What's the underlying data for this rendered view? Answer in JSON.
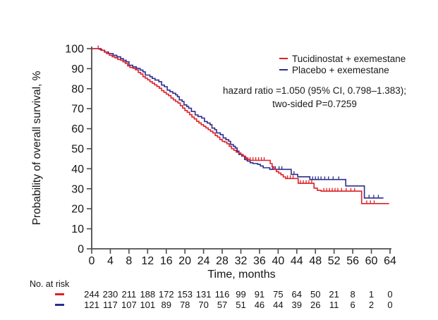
{
  "colors": {
    "tucidinostat": "#dd2127",
    "placebo": "#2b2e8f",
    "axis": "#4d4d4d",
    "text": "#141414"
  },
  "legend": {
    "items": [
      {
        "label": "Tucidinostat + exemestane",
        "color": "#dd2127"
      },
      {
        "label": "Placebo + exemestane",
        "color": "#2b2e8f"
      }
    ]
  },
  "annotation": {
    "line1": "hazard ratio =1.050 (95% CI, 0.798–1.383);",
    "line2": "two-sided P=0.7259"
  },
  "chart_data": {
    "type": "line",
    "subtype": "kaplan-meier-step",
    "title": "",
    "xlabel": "Time, months",
    "ylabel": "Probability of overall survival, %",
    "xlim": [
      0,
      64
    ],
    "ylim": [
      0,
      100
    ],
    "grid": false,
    "legend_position": "top-right-inside",
    "xticks": [
      0,
      4,
      8,
      12,
      16,
      20,
      24,
      28,
      32,
      36,
      40,
      44,
      48,
      52,
      56,
      60,
      64
    ],
    "yticks": [
      0,
      10,
      20,
      30,
      40,
      50,
      60,
      70,
      80,
      90,
      100
    ],
    "series": [
      {
        "name": "Placebo + exemestane",
        "color": "#2b2e8f",
        "points": [
          [
            0,
            100
          ],
          [
            2,
            99.2
          ],
          [
            2.8,
            98.3
          ],
          [
            3.6,
            97.5
          ],
          [
            4.6,
            96.7
          ],
          [
            5.4,
            95.9
          ],
          [
            6.2,
            95.0
          ],
          [
            6.8,
            94.2
          ],
          [
            7.4,
            93.4
          ],
          [
            8,
            91.7
          ],
          [
            8.8,
            90.9
          ],
          [
            9.6,
            90.1
          ],
          [
            10.4,
            89.3
          ],
          [
            11,
            88.4
          ],
          [
            11.5,
            86.8
          ],
          [
            12.5,
            86.0
          ],
          [
            13,
            85.1
          ],
          [
            13.6,
            84.3
          ],
          [
            14.4,
            83.5
          ],
          [
            15,
            81.8
          ],
          [
            15.6,
            81.0
          ],
          [
            16.2,
            79.3
          ],
          [
            16.8,
            78.5
          ],
          [
            17.4,
            77.7
          ],
          [
            18,
            76.9
          ],
          [
            18.4,
            76.0
          ],
          [
            18.8,
            74.4
          ],
          [
            19.4,
            73.6
          ],
          [
            19.8,
            71.9
          ],
          [
            20.4,
            71.1
          ],
          [
            20.8,
            70.2
          ],
          [
            21.4,
            68.6
          ],
          [
            22.2,
            66.9
          ],
          [
            22.8,
            66.1
          ],
          [
            23.6,
            65.3
          ],
          [
            24.2,
            63.6
          ],
          [
            24.8,
            62.8
          ],
          [
            25.4,
            62.0
          ],
          [
            25.8,
            60.3
          ],
          [
            26.4,
            59.5
          ],
          [
            26.8,
            57.9
          ],
          [
            27.6,
            57.0
          ],
          [
            28.2,
            55.4
          ],
          [
            28.8,
            54.5
          ],
          [
            29.4,
            53.7
          ],
          [
            29.8,
            52.1
          ],
          [
            30.4,
            51.2
          ],
          [
            30.8,
            50.4
          ],
          [
            31.2,
            48.8
          ],
          [
            31.6,
            47.1
          ],
          [
            32.2,
            46.3
          ],
          [
            32.8,
            44.6
          ],
          [
            33.4,
            43.8
          ],
          [
            34,
            43.0
          ],
          [
            34.6,
            42.6
          ],
          [
            35.6,
            42.2
          ],
          [
            36.2,
            41.4
          ],
          [
            36.8,
            40.5
          ],
          [
            38.2,
            39.7
          ],
          [
            42.8,
            37.2
          ],
          [
            44.2,
            36.0
          ],
          [
            46.8,
            34.6
          ],
          [
            54.5,
            31.4
          ],
          [
            58.5,
            25.4
          ],
          [
            62.6,
            25.4
          ]
        ],
        "censors": [
          [
            38.8,
            39.7
          ],
          [
            39.4,
            39.7
          ],
          [
            40.2,
            39.7
          ],
          [
            40.8,
            39.7
          ],
          [
            43.4,
            37.2
          ],
          [
            47.4,
            34.6
          ],
          [
            48,
            34.6
          ],
          [
            48.6,
            34.6
          ],
          [
            49.2,
            34.6
          ],
          [
            50,
            34.6
          ],
          [
            50.8,
            34.6
          ],
          [
            51.8,
            34.6
          ],
          [
            53,
            34.6
          ],
          [
            59.5,
            25.4
          ],
          [
            60.5,
            25.4
          ],
          [
            61.5,
            25.4
          ]
        ]
      },
      {
        "name": "Tucidinostat + exemestane",
        "color": "#dd2127",
        "points": [
          [
            0,
            100
          ],
          [
            1.6,
            99.6
          ],
          [
            2.2,
            99.2
          ],
          [
            2.7,
            98.3
          ],
          [
            3.2,
            97.5
          ],
          [
            3.8,
            96.7
          ],
          [
            4.4,
            95.9
          ],
          [
            5,
            95.4
          ],
          [
            5.6,
            94.6
          ],
          [
            6.2,
            94.2
          ],
          [
            6.7,
            93.4
          ],
          [
            7.2,
            92.6
          ],
          [
            7.7,
            91.4
          ],
          [
            8.2,
            90.6
          ],
          [
            8.8,
            90.2
          ],
          [
            9.4,
            89.4
          ],
          [
            10,
            88.1
          ],
          [
            10.5,
            87.3
          ],
          [
            11,
            86.0
          ],
          [
            11.5,
            85.2
          ],
          [
            12,
            84.4
          ],
          [
            12.5,
            83.5
          ],
          [
            13,
            82.7
          ],
          [
            13.5,
            81.9
          ],
          [
            14,
            81.1
          ],
          [
            14.5,
            80.2
          ],
          [
            15,
            79.0
          ],
          [
            15.5,
            78.2
          ],
          [
            16,
            77.3
          ],
          [
            16.5,
            76.5
          ],
          [
            17,
            75.3
          ],
          [
            17.5,
            74.4
          ],
          [
            18,
            73.6
          ],
          [
            18.5,
            72.8
          ],
          [
            19,
            71.5
          ],
          [
            19.5,
            70.3
          ],
          [
            20,
            69.1
          ],
          [
            20.5,
            68.2
          ],
          [
            21,
            67.0
          ],
          [
            21.5,
            65.8
          ],
          [
            22,
            64.9
          ],
          [
            22.5,
            63.7
          ],
          [
            23,
            62.9
          ],
          [
            23.5,
            62.0
          ],
          [
            24,
            61.2
          ],
          [
            24.5,
            60.4
          ],
          [
            25,
            59.5
          ],
          [
            25.5,
            58.7
          ],
          [
            26,
            57.9
          ],
          [
            26.5,
            56.6
          ],
          [
            27,
            55.8
          ],
          [
            27.5,
            54.6
          ],
          [
            28,
            53.7
          ],
          [
            28.5,
            53.3
          ],
          [
            29,
            52.5
          ],
          [
            29.5,
            51.2
          ],
          [
            30,
            50.0
          ],
          [
            30.5,
            49.2
          ],
          [
            31,
            48.3
          ],
          [
            31.5,
            47.9
          ],
          [
            32,
            47.1
          ],
          [
            32.5,
            46.3
          ],
          [
            33,
            45.4
          ],
          [
            33.5,
            44.6
          ],
          [
            34,
            44.2
          ],
          [
            38.3,
            42.6
          ],
          [
            38.7,
            41.0
          ],
          [
            39.1,
            39.8
          ],
          [
            39.6,
            38.6
          ],
          [
            40.1,
            37.8
          ],
          [
            40.6,
            37.0
          ],
          [
            41.1,
            35.9
          ],
          [
            41.6,
            35.1
          ],
          [
            44.3,
            32.7
          ],
          [
            47.7,
            30.3
          ],
          [
            48.4,
            29.2
          ],
          [
            49.2,
            28.8
          ],
          [
            57.9,
            22.6
          ],
          [
            63.8,
            22.6
          ]
        ],
        "censors": [
          [
            1.4,
            100
          ],
          [
            33.2,
            44.2
          ],
          [
            34,
            44.2
          ],
          [
            34.6,
            44.2
          ],
          [
            35.2,
            44.2
          ],
          [
            35.8,
            44.2
          ],
          [
            36.4,
            44.2
          ],
          [
            37,
            44.2
          ],
          [
            42,
            35.1
          ],
          [
            42.6,
            35.1
          ],
          [
            43.2,
            35.1
          ],
          [
            44.8,
            32.7
          ],
          [
            45.4,
            32.7
          ],
          [
            46,
            32.7
          ],
          [
            46.6,
            32.7
          ],
          [
            47.2,
            32.7
          ],
          [
            49.8,
            28.8
          ],
          [
            50.4,
            28.8
          ],
          [
            51,
            28.8
          ],
          [
            51.6,
            28.8
          ],
          [
            52.2,
            28.8
          ],
          [
            52.8,
            28.8
          ],
          [
            53.6,
            28.8
          ],
          [
            54.6,
            28.8
          ],
          [
            55.6,
            28.8
          ],
          [
            56.4,
            28.8
          ],
          [
            59,
            22.6
          ],
          [
            59.8,
            22.6
          ],
          [
            60.6,
            22.6
          ]
        ]
      }
    ],
    "stats_annotation": "hazard ratio =1.050 (95% CI, 0.798–1.383); two-sided P=0.7259"
  },
  "risk_table": {
    "title": "No. at risk",
    "times": [
      0,
      4,
      8,
      12,
      16,
      20,
      24,
      28,
      32,
      36,
      40,
      44,
      48,
      52,
      56,
      60,
      64
    ],
    "rows": [
      {
        "name": "Tucidinostat + exemestane",
        "color": "#dd2127",
        "values": [
          244,
          230,
          211,
          188,
          172,
          153,
          131,
          116,
          99,
          91,
          75,
          64,
          50,
          21,
          8,
          1,
          0
        ]
      },
      {
        "name": "Placebo + exemestane",
        "color": "#2b2e8f",
        "values": [
          121,
          117,
          107,
          101,
          89,
          78,
          70,
          57,
          51,
          46,
          44,
          39,
          26,
          11,
          6,
          2,
          0
        ]
      }
    ]
  }
}
